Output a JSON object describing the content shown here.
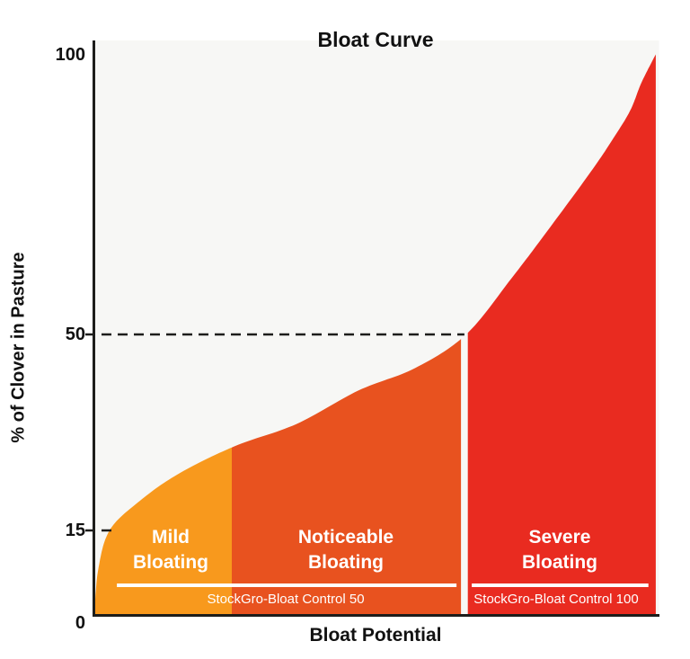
{
  "chart_data": {
    "type": "area",
    "title": "Bloat Curve",
    "xlabel": "Bloat Potential",
    "ylabel": "% of Clover in Pasture",
    "ylim": [
      0,
      100
    ],
    "yticks": [
      0,
      15,
      50,
      100
    ],
    "grid": false,
    "legend": "none",
    "x_axis_tick_labels": "none (qualitative axis)",
    "curve_description": "Cumulative curve of % clover in pasture vs bloat potential; steep at both ends, flat in middle",
    "curve": [
      [
        0.3,
        0
      ],
      [
        1,
        8
      ],
      [
        3,
        15
      ],
      [
        8,
        20
      ],
      [
        15,
        25
      ],
      [
        25,
        30
      ],
      [
        36,
        34
      ],
      [
        47,
        40
      ],
      [
        57,
        44
      ],
      [
        66,
        50
      ],
      [
        74,
        60
      ],
      [
        80,
        68
      ],
      [
        88,
        79
      ],
      [
        92,
        85
      ],
      [
        95,
        90
      ],
      [
        97,
        95
      ],
      [
        99.5,
        100
      ]
    ],
    "ref_lines": [
      {
        "value": 50,
        "x_end_pct": 65.7,
        "style": "dashed"
      },
      {
        "value": 15,
        "x_end_pct": 4.0,
        "style": "dashed"
      }
    ],
    "regions": [
      {
        "name": "mild",
        "label": "Mild\nBloating",
        "x_start_pct": 0.3,
        "x_end_pct": 24.6,
        "color": "#F8991D",
        "label_x_pct": 13.8
      },
      {
        "name": "noticeable",
        "label": "Noticeable\nBloating",
        "x_start_pct": 24.6,
        "x_end_pct": 65.1,
        "color": "#E8521F",
        "label_x_pct": 44.8
      },
      {
        "name": "severe",
        "label": "Severe\nBloating",
        "x_start_pct": 66.3,
        "x_end_pct": 99.5,
        "color": "#E92B20",
        "label_x_pct": 82.6
      }
    ],
    "products": [
      {
        "label": "StockGro-Bloat Control 50",
        "underline_x_pct": [
          4.3,
          64.3
        ],
        "label_x_pct": 34.1
      },
      {
        "label": "StockGro-Bloat Control 100",
        "underline_x_pct": [
          67.0,
          98.2
        ],
        "label_x_pct": 81.9
      }
    ],
    "colors": {
      "mild": "#F8991D",
      "noticeable": "#E8521F",
      "severe": "#E92B20",
      "axis": "#1D1D1B",
      "plot_bg": "#F7F7F5",
      "region_label_text": "#FFFFFF",
      "underline": "#FFFFFF",
      "ref_line": "#1D1D1B"
    }
  }
}
